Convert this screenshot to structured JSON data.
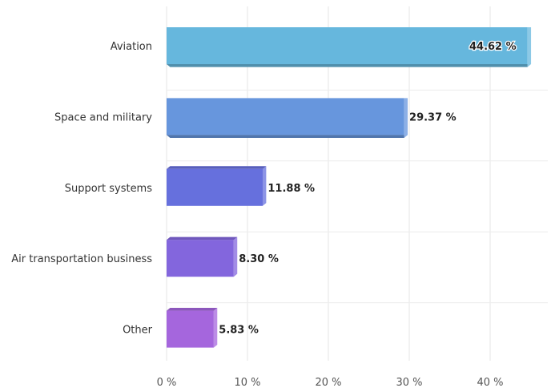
{
  "chart_data": {
    "type": "bar",
    "orientation": "horizontal",
    "style": "3d",
    "categories": [
      "Aviation",
      "Space and military",
      "Support systems",
      "Air transportation business",
      "Other"
    ],
    "values": [
      44.62,
      29.37,
      11.88,
      8.3,
      5.83
    ],
    "value_labels": [
      "44.62 %",
      "29.37 %",
      "11.88 %",
      "8.30 %",
      "5.83 %"
    ],
    "bar_colors": [
      "#66b7dd",
      "#6796dd",
      "#6670dd",
      "#8366dd",
      "#a566dd"
    ],
    "x_ticks": [
      0,
      10,
      20,
      30,
      40
    ],
    "x_tick_labels": [
      "0 %",
      "10 %",
      "20 %",
      "30 %",
      "40 %"
    ],
    "xlim": [
      0,
      46
    ],
    "grid": true,
    "title": "",
    "xlabel": "",
    "ylabel": ""
  }
}
